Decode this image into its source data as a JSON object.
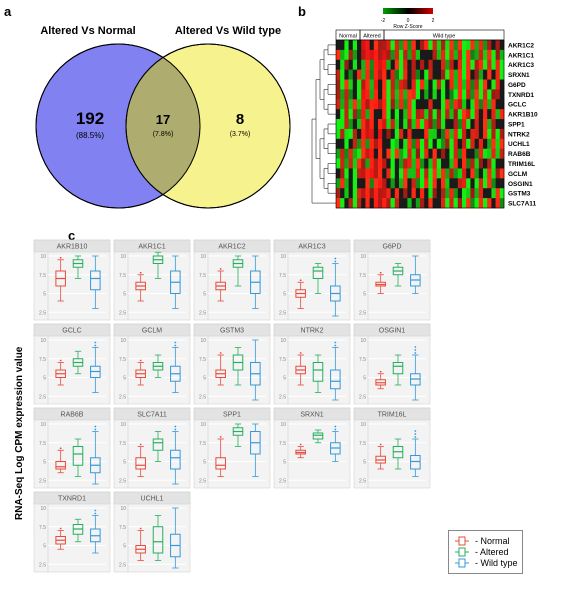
{
  "panel_labels": {
    "a": "a",
    "b": "b",
    "c": "c"
  },
  "venn": {
    "left_title": "Altered Vs Normal",
    "right_title": "Altered Vs Wild type",
    "left_count": "192",
    "left_pct": "(88.5%)",
    "overlap_count": "17",
    "overlap_pct": "(7.8%)",
    "right_count": "8",
    "right_pct": "(3.7%)",
    "left_fill": "#7a7af0",
    "right_fill": "#f5f07a",
    "overlap_fill": "#8a8a5a",
    "stroke": "#000000"
  },
  "heatmap": {
    "headers": [
      "Normal",
      "Altered",
      "Wild type"
    ],
    "genes": [
      "AKR1C2",
      "AKR1C1",
      "AKR1C3",
      "SRXN1",
      "G6PD",
      "TXNRD1",
      "GCLC",
      "AKR1B10",
      "SPP1",
      "NTRK2",
      "UCHL1",
      "RAB6B",
      "TRIM16L",
      "GCLM",
      "OSGIN1",
      "GSTM3",
      "SLC7A11"
    ],
    "color_scale_label": "Row Z-Score",
    "scale_colors": [
      "#00a000",
      "#000000",
      "#d00000"
    ],
    "scale_ticks": [
      "-2",
      "0",
      "2"
    ]
  },
  "boxplots": {
    "y_axis_label": "RNA-Seq Log CPM expression value",
    "groups": [
      {
        "name": "Normal",
        "color": "#e74c3c"
      },
      {
        "name": "Altered",
        "color": "#27ae60"
      },
      {
        "name": "Wild type",
        "color": "#3498db"
      }
    ],
    "ylim_default": [
      2,
      10
    ],
    "panels": [
      {
        "gene": "AKR1B10",
        "vals": [
          {
            "min": 4,
            "q1": 6,
            "med": 7,
            "q3": 8,
            "max": 9.5
          },
          {
            "min": 7,
            "q1": 8.5,
            "med": 9,
            "q3": 9.5,
            "max": 10
          },
          {
            "min": 3,
            "q1": 5.5,
            "med": 7,
            "q3": 8,
            "max": 10
          }
        ]
      },
      {
        "gene": "AKR1C1",
        "vals": [
          {
            "min": 4,
            "q1": 5.5,
            "med": 6,
            "q3": 6.5,
            "max": 7.5
          },
          {
            "min": 7,
            "q1": 9,
            "med": 9.5,
            "q3": 10,
            "max": 10.5
          },
          {
            "min": 3,
            "q1": 5,
            "med": 6.5,
            "q3": 8,
            "max": 10
          }
        ]
      },
      {
        "gene": "AKR1C2",
        "vals": [
          {
            "min": 4,
            "q1": 5.5,
            "med": 6,
            "q3": 6.5,
            "max": 8
          },
          {
            "min": 6,
            "q1": 8.5,
            "med": 9,
            "q3": 9.5,
            "max": 10
          },
          {
            "min": 3,
            "q1": 5,
            "med": 6.5,
            "q3": 8,
            "max": 10
          }
        ]
      },
      {
        "gene": "AKR1C3",
        "vals": [
          {
            "min": 3,
            "q1": 4.5,
            "med": 5,
            "q3": 5.5,
            "max": 6.5
          },
          {
            "min": 5,
            "q1": 7,
            "med": 8,
            "q3": 8.5,
            "max": 9
          },
          {
            "min": 2,
            "q1": 4,
            "med": 5,
            "q3": 6,
            "max": 9
          }
        ]
      },
      {
        "gene": "G6PD",
        "vals": [
          {
            "min": 5,
            "q1": 6,
            "med": 6.2,
            "q3": 6.5,
            "max": 7.5
          },
          {
            "min": 6,
            "q1": 7.5,
            "med": 8,
            "q3": 8.5,
            "max": 9
          },
          {
            "min": 5,
            "q1": 6,
            "med": 6.8,
            "q3": 7.5,
            "max": 10
          }
        ]
      },
      {
        "gene": "GCLC",
        "vals": [
          {
            "min": 4,
            "q1": 5,
            "med": 5.5,
            "q3": 6,
            "max": 7
          },
          {
            "min": 5.5,
            "q1": 6.5,
            "med": 7,
            "q3": 7.5,
            "max": 8.5
          },
          {
            "min": 3,
            "q1": 5,
            "med": 5.8,
            "q3": 6.5,
            "max": 9
          }
        ]
      },
      {
        "gene": "GCLM",
        "vals": [
          {
            "min": 4,
            "q1": 5,
            "med": 5.5,
            "q3": 6,
            "max": 7
          },
          {
            "min": 5,
            "q1": 6,
            "med": 6.5,
            "q3": 7,
            "max": 8
          },
          {
            "min": 3,
            "q1": 4.5,
            "med": 5.5,
            "q3": 6.5,
            "max": 9
          }
        ]
      },
      {
        "gene": "GSTM3",
        "vals": [
          {
            "min": 4,
            "q1": 5,
            "med": 5.5,
            "q3": 6,
            "max": 8
          },
          {
            "min": 4,
            "q1": 6,
            "med": 7,
            "q3": 8,
            "max": 9
          },
          {
            "min": 2,
            "q1": 4,
            "med": 5.5,
            "q3": 7,
            "max": 10
          }
        ]
      },
      {
        "gene": "NTRK2",
        "vals": [
          {
            "min": 4,
            "q1": 5.5,
            "med": 6,
            "q3": 6.5,
            "max": 8
          },
          {
            "min": 3,
            "q1": 4.5,
            "med": 6,
            "q3": 7,
            "max": 8
          },
          {
            "min": 2,
            "q1": 3.5,
            "med": 4.5,
            "q3": 6,
            "max": 9
          }
        ]
      },
      {
        "gene": "OSGIN1",
        "vals": [
          {
            "min": 3.5,
            "q1": 4,
            "med": 4.3,
            "q3": 4.7,
            "max": 5.5
          },
          {
            "min": 4,
            "q1": 5.5,
            "med": 6.5,
            "q3": 7,
            "max": 8
          },
          {
            "min": 2,
            "q1": 4,
            "med": 4.8,
            "q3": 5.5,
            "max": 8
          }
        ]
      },
      {
        "gene": "RAB6B",
        "vals": [
          {
            "min": 3.5,
            "q1": 4,
            "med": 4.3,
            "q3": 5,
            "max": 6.5
          },
          {
            "min": 3,
            "q1": 4.5,
            "med": 6,
            "q3": 7,
            "max": 8
          },
          {
            "min": 2,
            "q1": 3.5,
            "med": 4.5,
            "q3": 5.5,
            "max": 9
          }
        ]
      },
      {
        "gene": "SLC7A11",
        "vals": [
          {
            "min": 3,
            "q1": 4,
            "med": 4.5,
            "q3": 5.5,
            "max": 7
          },
          {
            "min": 5,
            "q1": 6.5,
            "med": 7.5,
            "q3": 8,
            "max": 9
          },
          {
            "min": 2,
            "q1": 4,
            "med": 5.5,
            "q3": 6.5,
            "max": 9
          }
        ]
      },
      {
        "gene": "SPP1",
        "vals": [
          {
            "min": 3,
            "q1": 4,
            "med": 4.5,
            "q3": 5.5,
            "max": 8
          },
          {
            "min": 7,
            "q1": 8.5,
            "med": 9,
            "q3": 9.5,
            "max": 10
          },
          {
            "min": 3,
            "q1": 6,
            "med": 7.5,
            "q3": 9,
            "max": 10
          }
        ]
      },
      {
        "gene": "SRXN1",
        "vals": [
          {
            "min": 5.5,
            "q1": 6,
            "med": 6.2,
            "q3": 6.5,
            "max": 7
          },
          {
            "min": 7.5,
            "q1": 8,
            "med": 8.5,
            "q3": 8.8,
            "max": 9.2
          },
          {
            "min": 5,
            "q1": 6,
            "med": 6.8,
            "q3": 7.5,
            "max": 9
          }
        ]
      },
      {
        "gene": "TRIM16L",
        "vals": [
          {
            "min": 4,
            "q1": 4.8,
            "med": 5.2,
            "q3": 5.7,
            "max": 7
          },
          {
            "min": 4,
            "q1": 5.5,
            "med": 6.3,
            "q3": 7,
            "max": 8
          },
          {
            "min": 3,
            "q1": 4,
            "med": 5,
            "q3": 5.8,
            "max": 8
          }
        ]
      },
      {
        "gene": "TXNRD1",
        "vals": [
          {
            "min": 4.5,
            "q1": 5.2,
            "med": 5.7,
            "q3": 6.2,
            "max": 7
          },
          {
            "min": 5.5,
            "q1": 6.5,
            "med": 7.2,
            "q3": 7.8,
            "max": 8.5
          },
          {
            "min": 4,
            "q1": 5.5,
            "med": 6.3,
            "q3": 7.2,
            "max": 9
          }
        ]
      },
      {
        "gene": "UCHL1",
        "vals": [
          {
            "min": 3,
            "q1": 4,
            "med": 4.5,
            "q3": 5,
            "max": 7
          },
          {
            "min": 3,
            "q1": 4,
            "med": 5.5,
            "q3": 7.5,
            "max": 9
          },
          {
            "min": 2,
            "q1": 3.5,
            "med": 5,
            "q3": 6.5,
            "max": 10
          }
        ]
      }
    ]
  },
  "legend": {
    "items": [
      {
        "label": "- Normal",
        "color": "#e74c3c"
      },
      {
        "label": "- Altered",
        "color": "#27ae60"
      },
      {
        "label": "- Wild type",
        "color": "#3498db"
      }
    ]
  }
}
